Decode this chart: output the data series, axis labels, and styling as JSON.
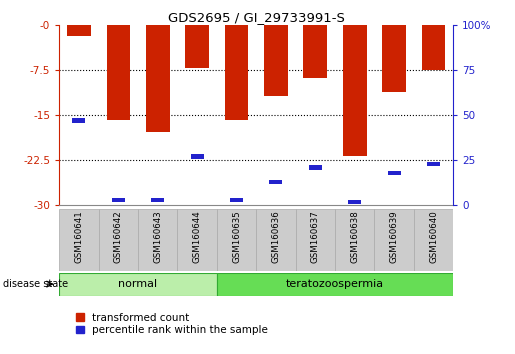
{
  "title": "GDS2695 / GI_29733991-S",
  "samples": [
    "GSM160641",
    "GSM160642",
    "GSM160643",
    "GSM160644",
    "GSM160635",
    "GSM160636",
    "GSM160637",
    "GSM160638",
    "GSM160639",
    "GSM160640"
  ],
  "groups": [
    "normal",
    "normal",
    "normal",
    "normal",
    "teratozoospermia",
    "teratozoospermia",
    "teratozoospermia",
    "teratozoospermia",
    "teratozoospermia",
    "teratozoospermia"
  ],
  "red_values": [
    -1.8,
    -15.8,
    -17.8,
    -7.2,
    -15.8,
    -11.8,
    -8.8,
    -21.8,
    -11.2,
    -7.5
  ],
  "blue_values_pct": [
    47,
    3,
    3,
    27,
    3,
    13,
    21,
    2,
    18,
    23
  ],
  "ylim_left": [
    -30,
    0
  ],
  "ylim_right": [
    0,
    100
  ],
  "yticks_left": [
    0,
    -7.5,
    -15,
    -22.5,
    -30
  ],
  "ytick_labels_left": [
    "-0",
    "-7.5",
    "-15",
    "-22.5",
    "-30"
  ],
  "yticks_right": [
    0,
    25,
    50,
    75,
    100
  ],
  "ytick_labels_right": [
    "0",
    "25",
    "50",
    "75",
    "100%"
  ],
  "bar_color": "#cc2200",
  "blue_color": "#2222cc",
  "normal_color_light": "#bbeeaa",
  "normal_color": "#aaddaa",
  "tera_color_light": "#66dd55",
  "tera_color": "#44cc33",
  "group_border": "#33aa33",
  "group_label": "disease state",
  "legend_items": [
    "transformed count",
    "percentile rank within the sample"
  ],
  "grid_color": "#000000",
  "sample_bg": "#cccccc",
  "sample_border": "#aaaaaa"
}
